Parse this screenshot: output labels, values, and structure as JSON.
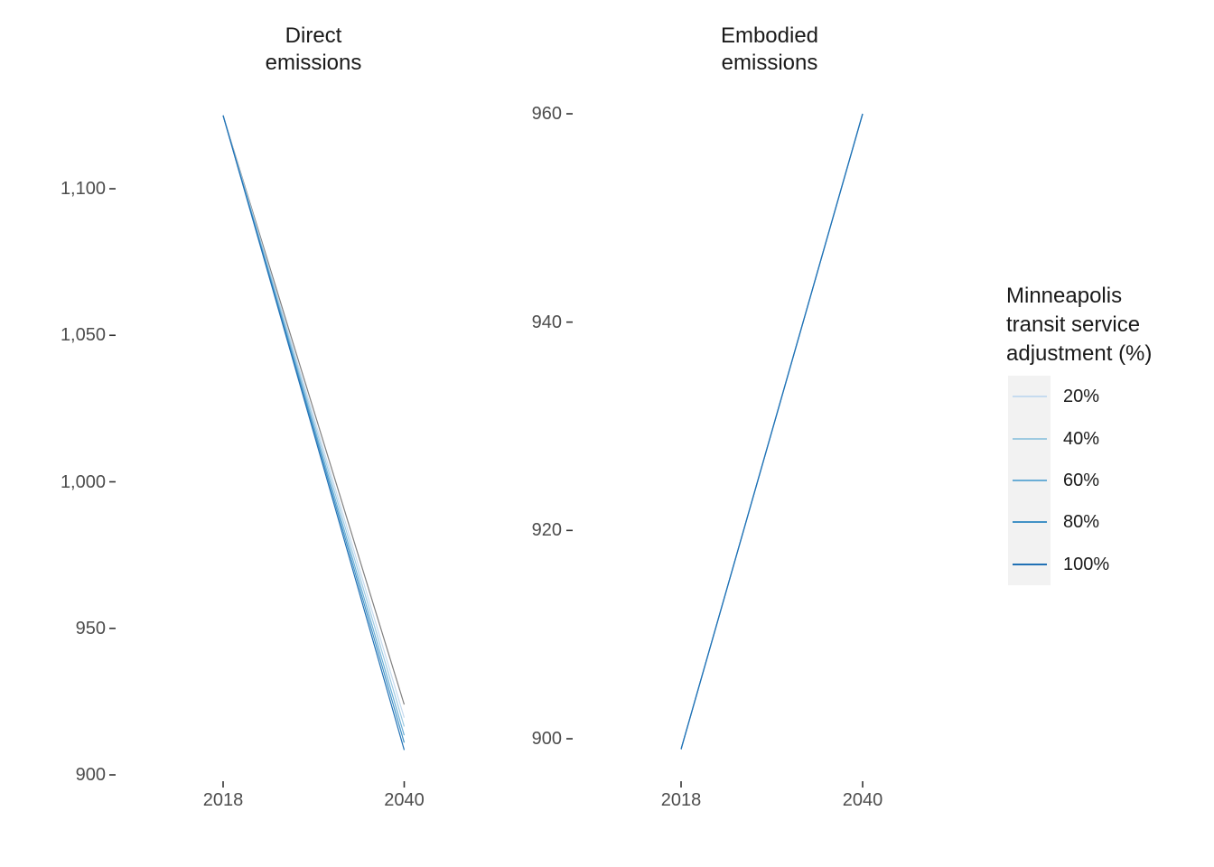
{
  "page": {
    "background": "#FFFFFF"
  },
  "style_colors": {
    "axis_text": "#4D4D4D",
    "tick_mark": "#333333",
    "title_text": "#1A1A1A",
    "legend_key_background": "#F2F2F2",
    "background": "#FFFFFF"
  },
  "chart_data": [
    {
      "type": "line",
      "title": "Direct emissions",
      "title_lines": [
        "Direct",
        "emissions"
      ],
      "xlabel": "",
      "ylabel": "",
      "grid": false,
      "x": [
        2018,
        2040
      ],
      "x_ticks": [
        2018,
        2040
      ],
      "x_tick_labels": [
        "2018",
        "2040"
      ],
      "y_ticks": [
        900,
        950,
        1000,
        1050,
        1100
      ],
      "y_tick_labels": [
        "900",
        "950",
        "1,000",
        "1,050",
        "1,100"
      ],
      "xlim": [
        2017,
        2041
      ],
      "ylim": [
        898,
        1136
      ],
      "series": [
        {
          "name": "baseline (gray, not in legend)",
          "color": "#808080",
          "values": [
            1125,
            924
          ]
        },
        {
          "name": "20%",
          "color": "#C6DBEF",
          "values": [
            1125,
            919.5
          ]
        },
        {
          "name": "40%",
          "color": "#9ECAE1",
          "values": [
            1125,
            916.5
          ]
        },
        {
          "name": "60%",
          "color": "#6BAED6",
          "values": [
            1125,
            913.5
          ]
        },
        {
          "name": "80%",
          "color": "#4292C6",
          "values": [
            1125,
            911
          ]
        },
        {
          "name": "100%",
          "color": "#2171B5",
          "values": [
            1125,
            908.5
          ]
        }
      ]
    },
    {
      "type": "line",
      "title": "Embodied emissions",
      "title_lines": [
        "Embodied",
        "emissions"
      ],
      "xlabel": "",
      "ylabel": "",
      "grid": false,
      "series_overlap": true,
      "x": [
        2018,
        2040
      ],
      "x_ticks": [
        2018,
        2040
      ],
      "x_tick_labels": [
        "2018",
        "2040"
      ],
      "y_ticks": [
        900,
        920,
        940,
        960
      ],
      "y_tick_labels": [
        "900",
        "920",
        "940",
        "960"
      ],
      "xlim": [
        2017,
        2041
      ],
      "ylim": [
        897,
        962
      ],
      "series": [
        {
          "name": "20%",
          "color": "#C6DBEF",
          "values": [
            899,
            960
          ]
        },
        {
          "name": "40%",
          "color": "#9ECAE1",
          "values": [
            899,
            960
          ]
        },
        {
          "name": "60%",
          "color": "#6BAED6",
          "values": [
            899,
            960
          ]
        },
        {
          "name": "80%",
          "color": "#4292C6",
          "values": [
            899,
            960
          ]
        },
        {
          "name": "100%",
          "color": "#2171B5",
          "values": [
            899,
            960
          ]
        }
      ]
    }
  ],
  "legend": {
    "title": "Minneapolis transit service adjustment (%)",
    "title_lines": [
      "Minneapolis",
      "transit service",
      "adjustment (%)"
    ],
    "key_background": "#F2F2F2",
    "items": [
      {
        "label": "20%",
        "color": "#C6DBEF"
      },
      {
        "label": "40%",
        "color": "#9ECAE1"
      },
      {
        "label": "60%",
        "color": "#6BAED6"
      },
      {
        "label": "80%",
        "color": "#4292C6"
      },
      {
        "label": "100%",
        "color": "#2171B5"
      }
    ]
  }
}
